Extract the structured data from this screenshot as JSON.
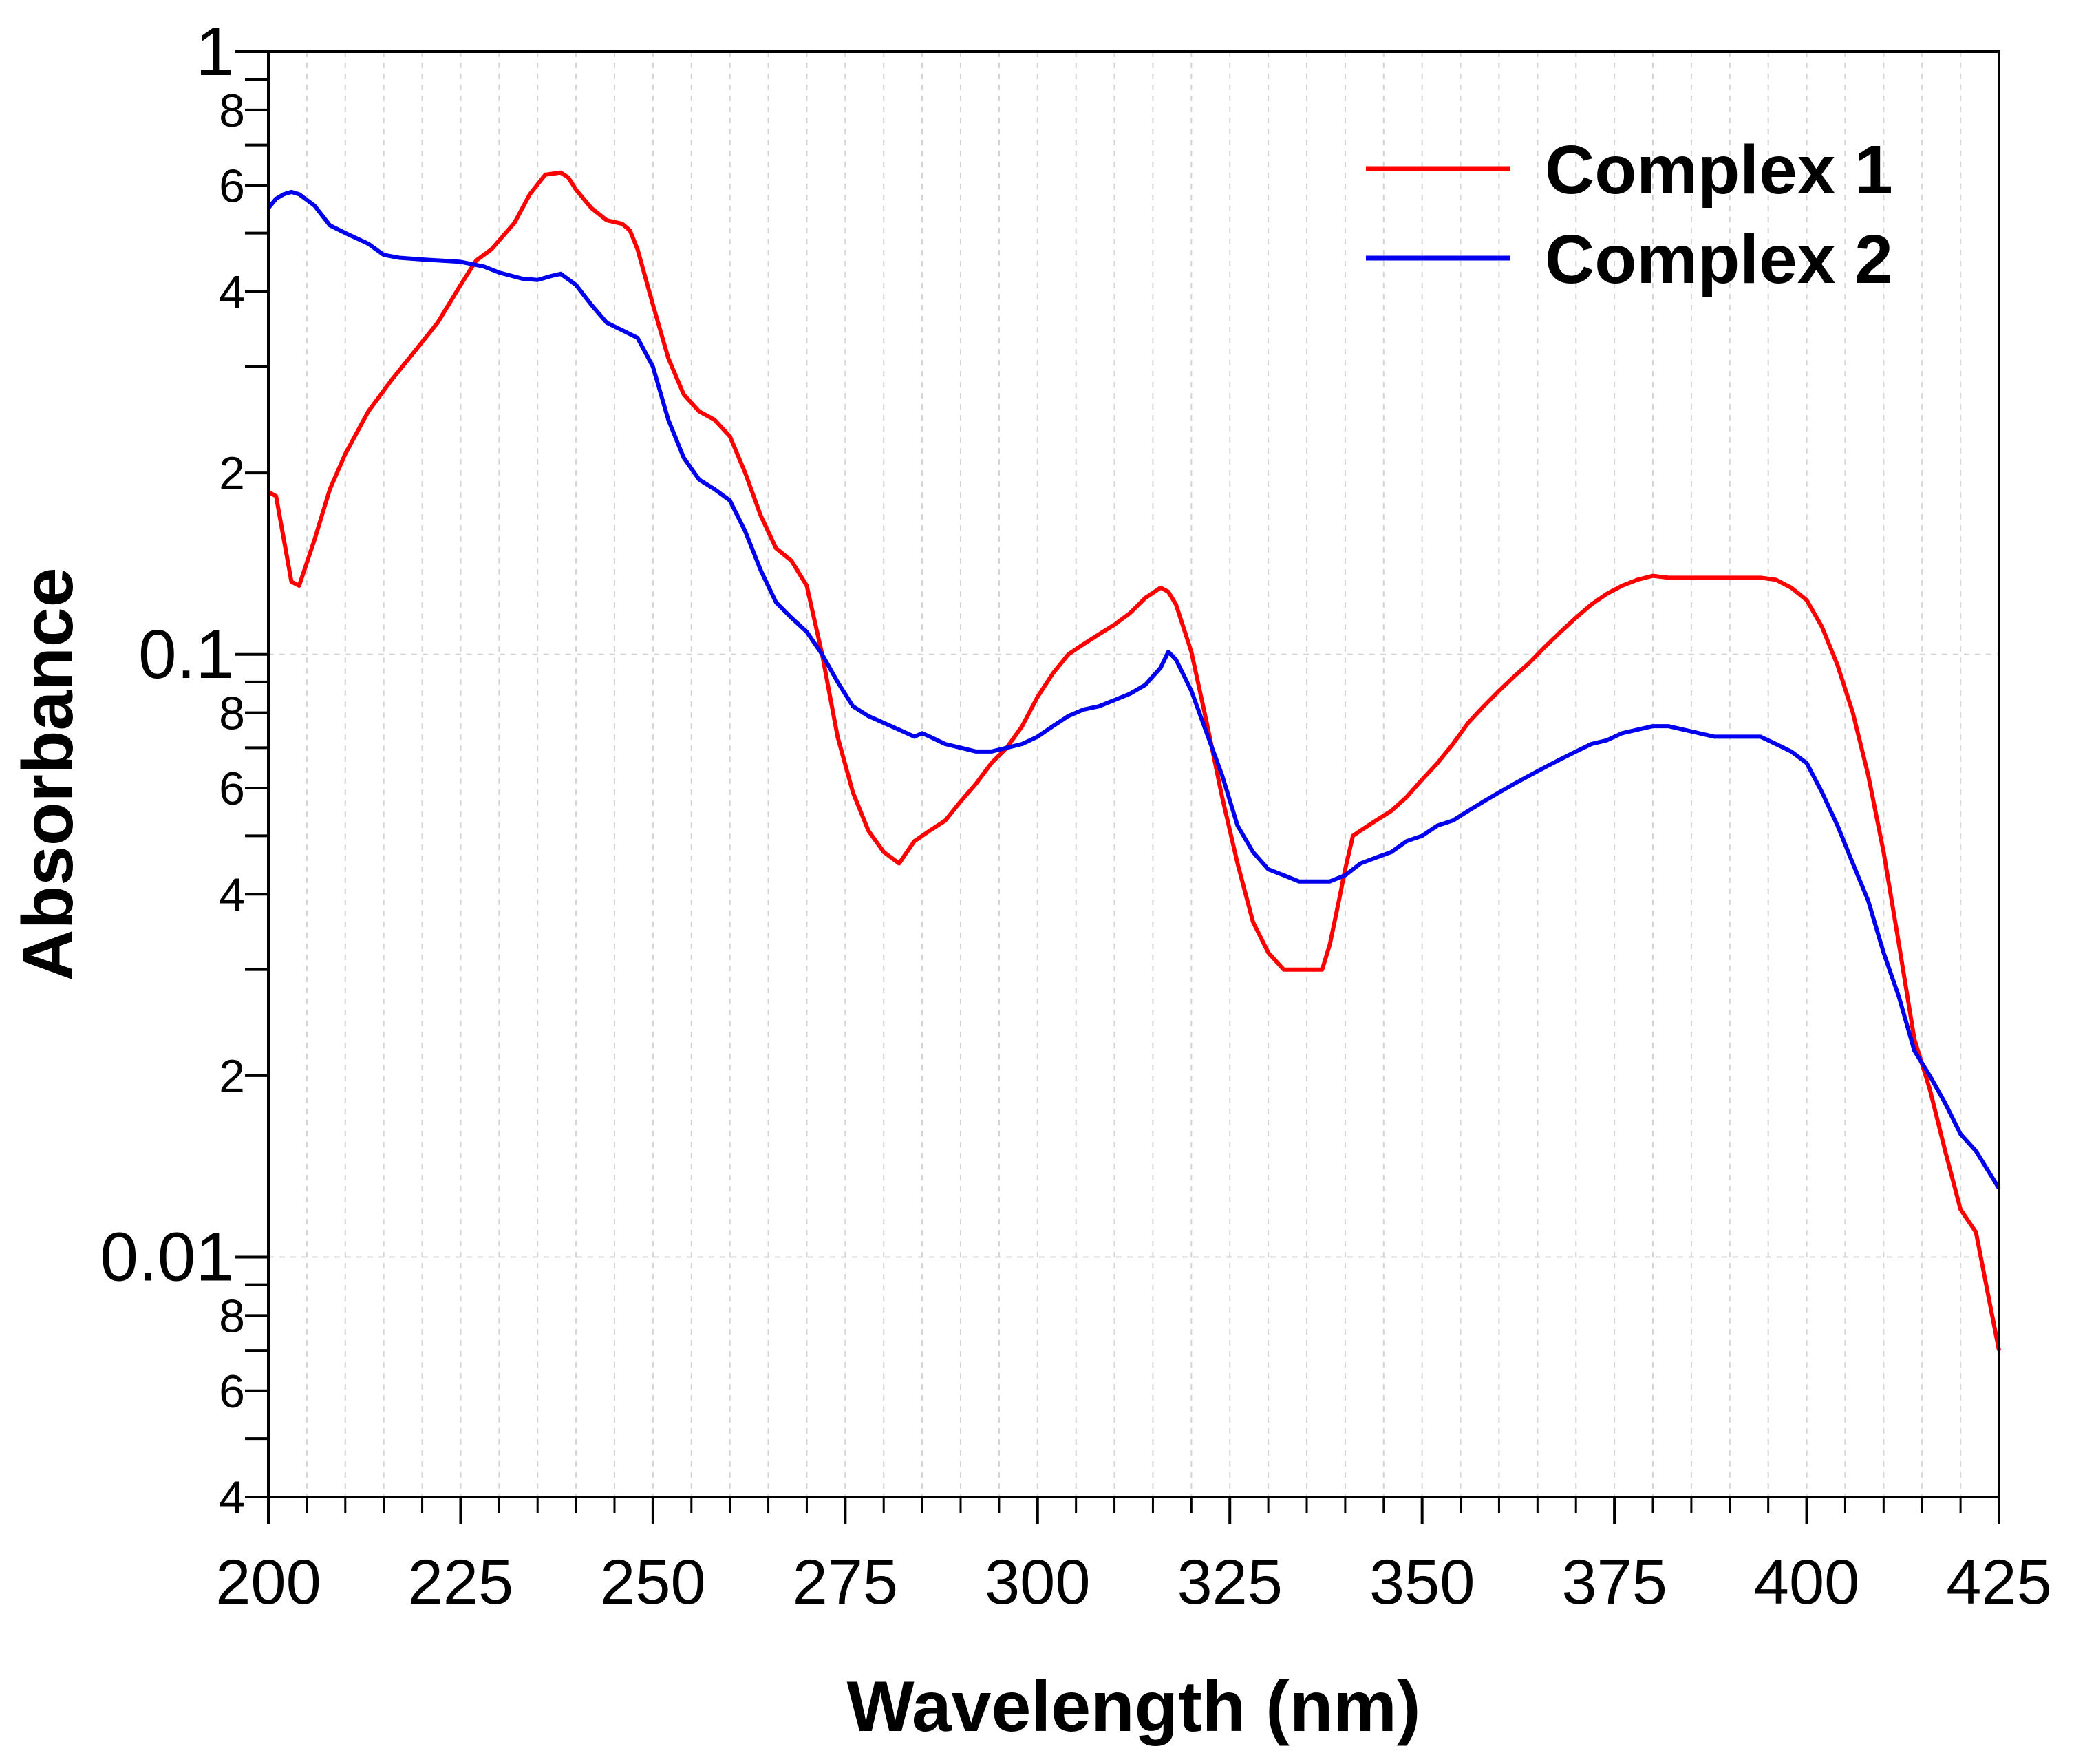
{
  "chart_data": {
    "type": "line",
    "title": "",
    "xlabel": "Wavelength (nm)",
    "ylabel": "Absorbance",
    "xlim": [
      200,
      425
    ],
    "ylim": [
      0.004,
      1
    ],
    "yscale": "log",
    "grid": true,
    "legend_position": "top-right",
    "x_ticks": [
      "200",
      "225",
      "250",
      "275",
      "300",
      "325",
      "350",
      "375",
      "400",
      "425"
    ],
    "y_major_ticks": [
      {
        "value": 1,
        "label": "1"
      },
      {
        "value": 0.1,
        "label": "0.1"
      },
      {
        "value": 0.01,
        "label": "0.01"
      }
    ],
    "y_minor_ticks": [
      {
        "value": 0.8,
        "label": "8"
      },
      {
        "value": 0.6,
        "label": "6"
      },
      {
        "value": 0.4,
        "label": "4"
      },
      {
        "value": 0.2,
        "label": "2"
      },
      {
        "value": 0.08,
        "label": "8"
      },
      {
        "value": 0.06,
        "label": "6"
      },
      {
        "value": 0.04,
        "label": "4"
      },
      {
        "value": 0.02,
        "label": "2"
      },
      {
        "value": 0.008,
        "label": "8"
      },
      {
        "value": 0.006,
        "label": "6"
      },
      {
        "value": 0.004,
        "label": "4"
      }
    ],
    "series": [
      {
        "name": "Complex 1",
        "color": "#ff0000",
        "x": [
          200,
          201,
          203,
          204,
          206,
          208,
          210,
          213,
          216,
          219,
          222,
          225,
          227,
          229,
          232,
          234,
          236,
          238,
          239,
          240,
          242,
          244,
          246,
          247,
          248,
          250,
          252,
          254,
          256,
          258,
          260,
          262,
          264,
          266,
          268,
          270,
          272,
          274,
          276,
          278,
          280,
          282,
          284,
          286,
          288,
          290,
          292,
          294,
          296,
          298,
          300,
          302,
          304,
          306,
          308,
          310,
          312,
          314,
          316,
          317,
          318,
          320,
          322,
          324,
          326,
          328,
          330,
          332,
          333,
          334,
          336,
          337,
          338,
          339,
          340,
          341,
          342,
          344,
          346,
          348,
          350,
          352,
          354,
          356,
          358,
          360,
          362,
          364,
          366,
          368,
          370,
          372,
          374,
          376,
          378,
          380,
          382,
          384,
          386,
          388,
          390,
          392,
          394,
          396,
          398,
          400,
          402,
          404,
          406,
          408,
          410,
          412,
          414,
          416,
          418,
          420,
          422,
          425
        ],
        "values": [
          0.186,
          0.183,
          0.132,
          0.13,
          0.155,
          0.188,
          0.215,
          0.253,
          0.285,
          0.318,
          0.355,
          0.41,
          0.45,
          0.47,
          0.52,
          0.58,
          0.625,
          0.63,
          0.618,
          0.59,
          0.55,
          0.525,
          0.518,
          0.505,
          0.47,
          0.38,
          0.31,
          0.27,
          0.253,
          0.245,
          0.23,
          0.2,
          0.17,
          0.15,
          0.143,
          0.13,
          0.1,
          0.073,
          0.059,
          0.051,
          0.047,
          0.045,
          0.049,
          0.051,
          0.053,
          0.057,
          0.061,
          0.066,
          0.07,
          0.076,
          0.085,
          0.093,
          0.1,
          0.104,
          0.108,
          0.112,
          0.117,
          0.124,
          0.129,
          0.127,
          0.121,
          0.101,
          0.077,
          0.058,
          0.045,
          0.036,
          0.032,
          0.03,
          0.03,
          0.03,
          0.03,
          0.03,
          0.033,
          0.038,
          0.044,
          0.05,
          0.051,
          0.053,
          0.055,
          0.058,
          0.062,
          0.066,
          0.071,
          0.077,
          0.082,
          0.087,
          0.092,
          0.097,
          0.103,
          0.109,
          0.115,
          0.121,
          0.126,
          0.13,
          0.133,
          0.135,
          0.134,
          0.134,
          0.134,
          0.134,
          0.134,
          0.134,
          0.134,
          0.133,
          0.129,
          0.123,
          0.111,
          0.096,
          0.08,
          0.063,
          0.047,
          0.033,
          0.023,
          0.019,
          0.015,
          0.012,
          0.011,
          0.007
        ]
      },
      {
        "name": "Complex 2",
        "color": "#0000ee",
        "x": [
          200,
          201,
          202,
          203,
          204,
          206,
          208,
          210,
          213,
          215,
          217,
          220,
          225,
          228,
          230,
          233,
          235,
          237,
          238,
          240,
          242,
          244,
          246,
          248,
          250,
          252,
          254,
          256,
          258,
          260,
          262,
          264,
          266,
          268,
          270,
          272,
          274,
          276,
          278,
          280,
          282,
          284,
          285,
          286,
          288,
          290,
          292,
          294,
          296,
          298,
          300,
          302,
          304,
          306,
          308,
          310,
          312,
          314,
          316,
          317,
          318,
          320,
          322,
          324,
          326,
          328,
          330,
          332,
          334,
          336,
          338,
          340,
          342,
          344,
          346,
          348,
          350,
          352,
          354,
          356,
          358,
          360,
          362,
          364,
          366,
          368,
          370,
          372,
          374,
          376,
          378,
          380,
          382,
          384,
          386,
          388,
          390,
          392,
          394,
          396,
          398,
          400,
          402,
          404,
          406,
          408,
          410,
          412,
          414,
          416,
          418,
          420,
          422,
          425
        ],
        "values": [
          0.55,
          0.57,
          0.58,
          0.585,
          0.58,
          0.555,
          0.515,
          0.5,
          0.48,
          0.46,
          0.455,
          0.452,
          0.448,
          0.44,
          0.43,
          0.42,
          0.418,
          0.425,
          0.428,
          0.41,
          0.38,
          0.355,
          0.345,
          0.335,
          0.3,
          0.245,
          0.212,
          0.195,
          0.188,
          0.18,
          0.16,
          0.138,
          0.122,
          0.115,
          0.109,
          0.1,
          0.09,
          0.082,
          0.079,
          0.077,
          0.075,
          0.073,
          0.074,
          0.073,
          0.071,
          0.07,
          0.069,
          0.069,
          0.07,
          0.071,
          0.073,
          0.076,
          0.079,
          0.081,
          0.082,
          0.084,
          0.086,
          0.089,
          0.095,
          0.101,
          0.098,
          0.087,
          0.074,
          0.063,
          0.052,
          0.047,
          0.044,
          0.043,
          0.042,
          0.042,
          0.042,
          0.043,
          0.045,
          0.046,
          0.047,
          0.049,
          0.05,
          0.052,
          0.053,
          0.055,
          0.057,
          0.059,
          0.061,
          0.063,
          0.065,
          0.067,
          0.069,
          0.071,
          0.072,
          0.074,
          0.075,
          0.076,
          0.076,
          0.075,
          0.074,
          0.073,
          0.073,
          0.073,
          0.073,
          0.071,
          0.069,
          0.066,
          0.059,
          0.052,
          0.045,
          0.039,
          0.032,
          0.027,
          0.022,
          0.02,
          0.018,
          0.016,
          0.015,
          0.013
        ]
      }
    ]
  }
}
